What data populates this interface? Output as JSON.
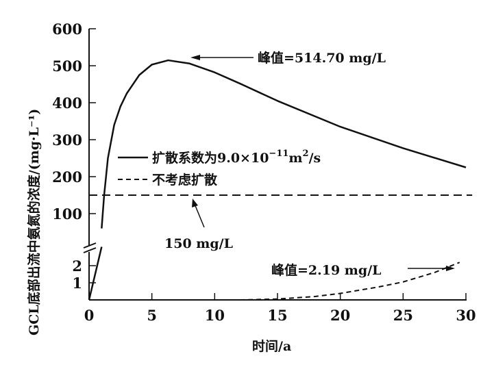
{
  "chart_data": {
    "type": "line",
    "title": "",
    "xlabel": "时间/a",
    "ylabel": "GCL底部出流中氨氮的浓度/(mg·L⁻¹)",
    "xlim": [
      0,
      30
    ],
    "ylim_upper": [
      100,
      600
    ],
    "ylim_lower": [
      0,
      2.5
    ],
    "broken_y_axis": true,
    "x_ticks": [
      "0",
      "5",
      "10",
      "15",
      "20",
      "25",
      "30"
    ],
    "y_ticks_upper": [
      "100",
      "200",
      "300",
      "400",
      "500",
      "600"
    ],
    "y_ticks_lower": [
      "1",
      "2"
    ],
    "grid": false,
    "legend_position": "center-left",
    "series": [
      {
        "name": "扩散系数为9.0×10⁻¹¹m²/s",
        "style": "solid",
        "lower_points": [
          [
            0,
            0
          ],
          [
            1.0,
            3.1
          ]
        ],
        "upper_points": [
          [
            1.0,
            60
          ],
          [
            1.2,
            150
          ],
          [
            1.5,
            250
          ],
          [
            2,
            340
          ],
          [
            2.5,
            390
          ],
          [
            3,
            425
          ],
          [
            4,
            475
          ],
          [
            5,
            503
          ],
          [
            6.3,
            514.7
          ],
          [
            8,
            506
          ],
          [
            10,
            482
          ],
          [
            12,
            452
          ],
          [
            15,
            405
          ],
          [
            20,
            335
          ],
          [
            25,
            277
          ],
          [
            30,
            225
          ]
        ]
      },
      {
        "name": "不考虑扩散",
        "style": "dashed",
        "upper_points": [
          [
            0,
            150
          ],
          [
            30.5,
            150
          ]
        ],
        "lower_points": [
          [
            12,
            0
          ],
          [
            15,
            0.05
          ],
          [
            18,
            0.2
          ],
          [
            20,
            0.38
          ],
          [
            23,
            0.75
          ],
          [
            25,
            1.05
          ],
          [
            27.5,
            1.6
          ],
          [
            29.5,
            2.19
          ]
        ]
      }
    ],
    "annotations": {
      "peak_diffusion": "峰值=514.70 mg/L",
      "threshold": "150 mg/L",
      "peak_no_diffusion": "峰值=2.19 mg/L"
    },
    "legend": {
      "main": "扩散系数为9.0×10",
      "exp": "−11",
      "unit": "m",
      "unit_exp": "2",
      "unit_tail": "/s",
      "dashed": "不考虑扩散"
    }
  }
}
